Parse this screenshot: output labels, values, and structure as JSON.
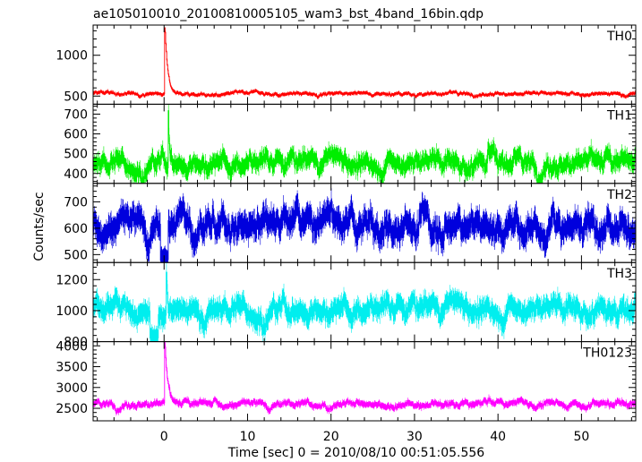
{
  "chart_data": {
    "type": "line",
    "title": "ae105010010_20100810005105_wam3_bst_4band_16bin.qdp",
    "xlabel": "Time [sec] 0 = 2010/08/10 00:51:05.556",
    "ylabel": "Counts/sec",
    "xlim": [
      -8.5,
      56.5
    ],
    "x_ticks": [
      0,
      10,
      20,
      30,
      40,
      50
    ],
    "grid": false,
    "panels": [
      {
        "name": "TH0",
        "color": "#ff0000",
        "ylim": [
          400,
          1370
        ],
        "y_ticks": [
          500,
          1000
        ],
        "baseline": 530,
        "noise": 25,
        "error": 20,
        "burst": {
          "t": 0.1,
          "peak": 1360,
          "decay": 0.35
        },
        "dips": [],
        "bumps": []
      },
      {
        "name": "TH1",
        "color": "#00ee00",
        "ylim": [
          350,
          750
        ],
        "y_ticks": [
          400,
          500,
          600,
          700
        ],
        "baseline": 450,
        "noise": 50,
        "error": 40,
        "burst": {
          "t": 0.5,
          "peak": 740,
          "decay": 0.15
        },
        "dips": [],
        "bumps": [
          {
            "t": 39.3,
            "v": 570
          }
        ]
      },
      {
        "name": "TH2",
        "color": "#0000dd",
        "ylim": [
          470,
          770
        ],
        "y_ticks": [
          500,
          600,
          700
        ],
        "baseline": 615,
        "noise": 55,
        "error": 45,
        "burst": {
          "t": 0.2,
          "peak": 760,
          "decay": 0.05
        },
        "dips": [
          {
            "t": 0.0,
            "v": 480
          }
        ],
        "bumps": []
      },
      {
        "name": "TH3",
        "color": "#00eeee",
        "ylim": [
          800,
          1310
        ],
        "y_ticks": [
          800,
          1000,
          1200
        ],
        "baseline": 1005,
        "noise": 70,
        "error": 60,
        "burst": {
          "t": 0.3,
          "peak": 1290,
          "decay": 0.12
        },
        "dips": [
          {
            "t": -1.2,
            "v": 830
          }
        ],
        "bumps": []
      },
      {
        "name": "TH0123",
        "color": "#ff00ff",
        "ylim": [
          2200,
          4100
        ],
        "y_ticks": [
          2500,
          3000,
          3500,
          4000
        ],
        "baseline": 2600,
        "noise": 90,
        "error": 70,
        "burst": {
          "t": 0.1,
          "peak": 4050,
          "decay": 0.3
        },
        "dips": [],
        "bumps": []
      }
    ]
  }
}
